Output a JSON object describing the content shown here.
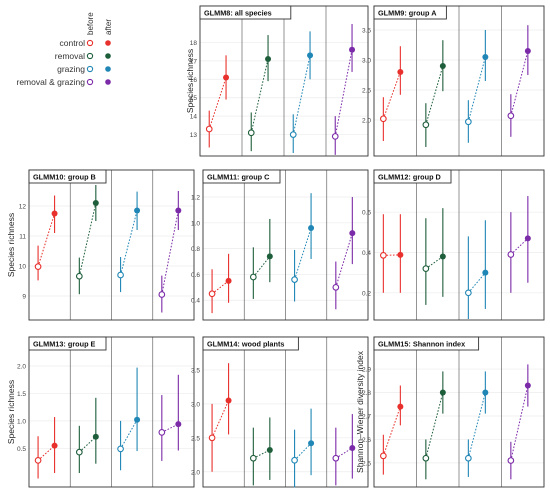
{
  "legend": {
    "items": [
      {
        "label": "control",
        "color": "#e8302c"
      },
      {
        "label": "removal",
        "color": "#1e5e3b"
      },
      {
        "label": "grazing",
        "color": "#1f86b5"
      },
      {
        "label": "removal & grazing",
        "color": "#7b2aa8"
      }
    ],
    "columns": [
      "before",
      "after"
    ]
  },
  "chart_data": [
    {
      "type": "scatter",
      "title": "GLMM8: all species",
      "ylabel": "Species richness",
      "ylim": [
        12,
        19
      ],
      "yticks": [
        "13",
        "14",
        "15",
        "16",
        "17",
        "18"
      ],
      "groups": [
        "control",
        "removal",
        "grazing",
        "removal & grazing"
      ],
      "series": [
        {
          "values": [
            {
              "before": 13.3,
              "after": 16.1
            }
          ],
          "ci": [
            [
              12.3,
              14.3
            ],
            [
              14.9,
              17.3
            ]
          ]
        },
        {
          "values": [
            {
              "before": 13.1,
              "after": 17.1
            }
          ],
          "ci": [
            [
              12.1,
              14.2
            ],
            [
              15.9,
              18.4
            ]
          ]
        },
        {
          "values": [
            {
              "before": 13.0,
              "after": 17.3
            }
          ],
          "ci": [
            [
              12.0,
              14.1
            ],
            [
              16.0,
              18.6
            ]
          ]
        },
        {
          "values": [
            {
              "before": 12.9,
              "after": 17.6
            }
          ],
          "ci": [
            [
              11.9,
              14.0
            ],
            [
              16.4,
              19.0
            ]
          ]
        }
      ]
    },
    {
      "type": "scatter",
      "title": "GLMM9: group A",
      "ylabel": "",
      "ylim": [
        1.45,
        3.6
      ],
      "yticks": [
        "2.0",
        "2.5",
        "3.0",
        "3.5"
      ],
      "groups": [
        "control",
        "removal",
        "grazing",
        "removal & grazing"
      ],
      "series": [
        {
          "values": [
            {
              "before": 2.02,
              "after": 2.8
            }
          ],
          "ci": [
            [
              1.65,
              2.38
            ],
            [
              2.42,
              3.23
            ]
          ]
        },
        {
          "values": [
            {
              "before": 1.92,
              "after": 2.9
            }
          ],
          "ci": [
            [
              1.55,
              2.28
            ],
            [
              2.48,
              3.33
            ]
          ]
        },
        {
          "values": [
            {
              "before": 1.97,
              "after": 3.05
            }
          ],
          "ci": [
            [
              1.62,
              2.33
            ],
            [
              2.65,
              3.5
            ]
          ]
        },
        {
          "values": [
            {
              "before": 2.07,
              "after": 3.15
            }
          ],
          "ci": [
            [
              1.72,
              2.43
            ],
            [
              2.75,
              3.58
            ]
          ]
        }
      ]
    },
    {
      "type": "scatter",
      "title": "GLMM10: group B",
      "ylabel": "Species richness",
      "ylim": [
        8.3,
        12.6
      ],
      "yticks": [
        "9",
        "10",
        "11",
        "12"
      ],
      "groups": [
        "control",
        "removal",
        "grazing",
        "removal & grazing"
      ],
      "series": [
        {
          "values": [
            {
              "before": 9.98,
              "after": 11.75
            }
          ],
          "ci": [
            [
              9.52,
              10.68
            ],
            [
              11.1,
              12.35
            ]
          ]
        },
        {
          "values": [
            {
              "before": 9.66,
              "after": 12.1
            }
          ],
          "ci": [
            [
              9.06,
              10.28
            ],
            [
              11.5,
              12.7
            ]
          ]
        },
        {
          "values": [
            {
              "before": 9.7,
              "after": 11.85
            }
          ],
          "ci": [
            [
              9.13,
              10.3
            ],
            [
              11.2,
              12.48
            ]
          ]
        },
        {
          "values": [
            {
              "before": 9.05,
              "after": 11.85
            }
          ],
          "ci": [
            [
              8.45,
              9.68
            ],
            [
              11.2,
              12.5
            ]
          ]
        }
      ]
    },
    {
      "type": "scatter",
      "title": "GLMM11: group C",
      "ylabel": "",
      "ylim": [
        0.27,
        1.27
      ],
      "yticks": [
        "0.4",
        "0.6",
        "0.8",
        "1.0",
        "1.2"
      ],
      "groups": [
        "control",
        "removal",
        "grazing",
        "removal & grazing"
      ],
      "series": [
        {
          "values": [
            {
              "before": 0.45,
              "after": 0.55
            }
          ],
          "ci": [
            [
              0.3,
              0.64
            ],
            [
              0.38,
              0.76
            ]
          ]
        },
        {
          "values": [
            {
              "before": 0.58,
              "after": 0.74
            }
          ],
          "ci": [
            [
              0.41,
              0.81
            ],
            [
              0.54,
              1.03
            ]
          ]
        },
        {
          "values": [
            {
              "before": 0.56,
              "after": 0.96
            }
          ],
          "ci": [
            [
              0.39,
              0.79
            ],
            [
              0.72,
              1.23
            ]
          ]
        },
        {
          "values": [
            {
              "before": 0.5,
              "after": 0.92
            }
          ],
          "ci": [
            [
              0.33,
              0.7
            ],
            [
              0.68,
              1.2
            ]
          ]
        }
      ]
    },
    {
      "type": "scatter",
      "title": "GLMM12: group D",
      "ylabel": "",
      "ylim": [
        0.08,
        0.72
      ],
      "yticks": [
        "0.2",
        "0.4",
        "0.6"
      ],
      "groups": [
        "control",
        "removal",
        "grazing",
        "removal & grazing"
      ],
      "series": [
        {
          "values": [
            {
              "before": 0.386,
              "after": 0.388
            }
          ],
          "ci": [
            [
              0.2,
              0.59
            ],
            [
              0.2,
              0.59
            ]
          ]
        },
        {
          "values": [
            {
              "before": 0.32,
              "after": 0.38
            }
          ],
          "ci": [
            [
              0.14,
              0.57
            ],
            [
              0.18,
              0.62
            ]
          ]
        },
        {
          "values": [
            {
              "before": 0.2,
              "after": 0.3
            }
          ],
          "ci": [
            [
              0.07,
              0.48
            ],
            [
              0.12,
              0.56
            ]
          ]
        },
        {
          "values": [
            {
              "before": 0.39,
              "after": 0.47
            }
          ],
          "ci": [
            [
              0.2,
              0.6
            ],
            [
              0.25,
              0.68
            ]
          ]
        }
      ]
    },
    {
      "type": "scatter",
      "title": "GLMM13: group E",
      "ylabel": "Species richness",
      "ylim": [
        -0.15,
        2.2
      ],
      "yticks": [
        "0.5",
        "1.0",
        "1.5",
        "2.0"
      ],
      "groups": [
        "control",
        "removal",
        "grazing",
        "removal & grazing"
      ],
      "series": [
        {
          "values": [
            {
              "before": 0.28,
              "after": 0.55
            }
          ],
          "ci": [
            [
              -0.05,
              0.72
            ],
            [
              0.05,
              1.07
            ]
          ]
        },
        {
          "values": [
            {
              "before": 0.43,
              "after": 0.71
            }
          ],
          "ci": [
            [
              0.05,
              0.91
            ],
            [
              0.22,
              1.42
            ]
          ]
        },
        {
          "values": [
            {
              "before": 0.49,
              "after": 1.02
            }
          ],
          "ci": [
            [
              0.1,
              1.0
            ],
            [
              0.45,
              1.97
            ]
          ]
        },
        {
          "values": [
            {
              "before": 0.79,
              "after": 0.94
            }
          ],
          "ci": [
            [
              0.27,
              1.47
            ],
            [
              0.46,
              1.84
            ]
          ]
        }
      ]
    },
    {
      "type": "scatter",
      "title": "GLMM14: wood plants",
      "ylabel": "",
      "ylim": [
        1.82,
        3.72
      ],
      "yticks": [
        "2.0",
        "2.5",
        "3.0",
        "3.5"
      ],
      "groups": [
        "control",
        "removal",
        "grazing",
        "removal & grazing"
      ],
      "series": [
        {
          "values": [
            {
              "before": 2.5,
              "after": 3.05
            }
          ],
          "ci": [
            [
              2.0,
              3.0
            ],
            [
              2.55,
              3.6
            ]
          ]
        },
        {
          "values": [
            {
              "before": 2.2,
              "after": 2.32
            }
          ],
          "ci": [
            [
              1.8,
              2.65
            ],
            [
              1.88,
              2.8
            ]
          ]
        },
        {
          "values": [
            {
              "before": 2.17,
              "after": 2.42
            }
          ],
          "ci": [
            [
              1.77,
              2.62
            ],
            [
              1.95,
              2.93
            ]
          ]
        },
        {
          "values": [
            {
              "before": 2.2,
              "after": 2.35
            }
          ],
          "ci": [
            [
              1.8,
              2.65
            ],
            [
              1.9,
              2.85
            ]
          ]
        }
      ]
    },
    {
      "type": "scatter",
      "title": "GLMM15: Shannon index",
      "ylabel": "Shannon–Wiener diversity index",
      "ylim": [
        2.41,
        2.96
      ],
      "yticks": [
        "2.5",
        "2.6",
        "2.7",
        "2.8",
        "2.9"
      ],
      "groups": [
        "control",
        "removal",
        "grazing",
        "removal & grazing"
      ],
      "series": [
        {
          "values": [
            {
              "before": 2.53,
              "after": 2.74
            }
          ],
          "ci": [
            [
              2.45,
              2.62
            ],
            [
              2.66,
              2.83
            ]
          ]
        },
        {
          "values": [
            {
              "before": 2.52,
              "after": 2.8
            }
          ],
          "ci": [
            [
              2.43,
              2.6
            ],
            [
              2.71,
              2.89
            ]
          ]
        },
        {
          "values": [
            {
              "before": 2.52,
              "after": 2.8
            }
          ],
          "ci": [
            [
              2.44,
              2.6
            ],
            [
              2.71,
              2.89
            ]
          ]
        },
        {
          "values": [
            {
              "before": 2.51,
              "after": 2.83
            }
          ],
          "ci": [
            [
              2.43,
              2.59
            ],
            [
              2.74,
              2.92
            ]
          ]
        }
      ]
    }
  ]
}
